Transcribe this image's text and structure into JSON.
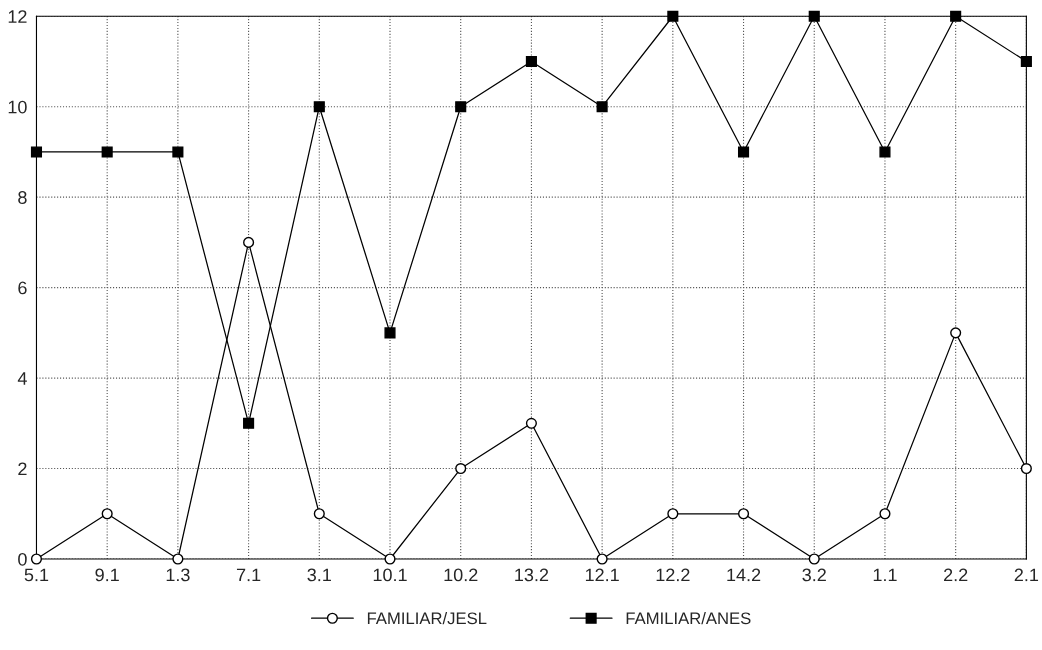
{
  "chart_data": {
    "type": "line",
    "categories": [
      "5.1",
      "9.1",
      "1.3",
      "7.1",
      "3.1",
      "10.1",
      "10.2",
      "13.2",
      "12.1",
      "12.2",
      "14.2",
      "3.2",
      "1.1",
      "2.2",
      "2.1"
    ],
    "series": [
      {
        "name": "FAMILIAR/JESL",
        "color": "#000000",
        "marker": "circle",
        "values": [
          0,
          1,
          0,
          7,
          1,
          0,
          2,
          3,
          0,
          1,
          1,
          0,
          1,
          5,
          2
        ]
      },
      {
        "name": "FAMILIAR/ANES",
        "color": "#000000",
        "marker": "square",
        "values": [
          9,
          9,
          9,
          3,
          10,
          5,
          10,
          11,
          10,
          12,
          9,
          12,
          9,
          12,
          11
        ]
      }
    ],
    "ylim": [
      0,
      12
    ],
    "yticks": [
      0,
      2,
      4,
      6,
      8,
      10,
      12
    ],
    "grid": true,
    "legend": "bottom",
    "line_style": "solid"
  }
}
